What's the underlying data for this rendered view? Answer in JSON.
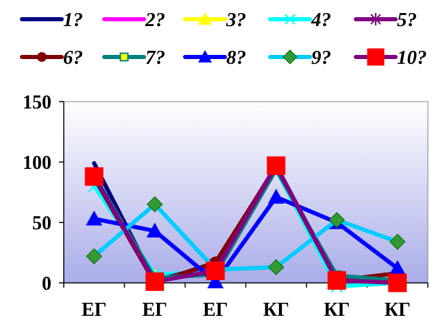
{
  "chart_data": {
    "type": "line",
    "title": "",
    "xlabel": "",
    "ylabel": "",
    "ylim": [
      0,
      150
    ],
    "yticks": [
      0,
      50,
      100,
      150
    ],
    "categories": [
      "ЕГ",
      "ЕГ",
      "ЕГ",
      "КГ",
      "КГ",
      "КГ"
    ],
    "grid": false,
    "legend_position": "top",
    "plot_background": [
      "#ffffff",
      "#a9ace8"
    ],
    "series": [
      {
        "name": "1?",
        "color": "#000080",
        "marker": "none",
        "values": [
          99,
          1,
          12,
          97,
          2,
          0
        ]
      },
      {
        "name": "2?",
        "color": "#ff00ff",
        "marker": "none",
        "values": [
          88,
          3,
          11,
          96,
          3,
          1
        ]
      },
      {
        "name": "3?",
        "color": "#ffff00",
        "marker": "triangle",
        "values": [
          87,
          5,
          8,
          95,
          4,
          2
        ]
      },
      {
        "name": "4?",
        "color": "#00ffff",
        "marker": "x",
        "values": [
          80,
          7,
          9,
          94,
          -3,
          0
        ]
      },
      {
        "name": "5?",
        "color": "#800080",
        "marker": "star",
        "values": [
          89,
          2,
          15,
          97,
          3,
          1
        ]
      },
      {
        "name": "6?",
        "color": "#800000",
        "marker": "circle",
        "values": [
          87,
          0,
          17,
          96,
          2,
          8
        ]
      },
      {
        "name": "7?",
        "color": "#008080",
        "marker": "square",
        "values": [
          89,
          4,
          7,
          94,
          6,
          2
        ]
      },
      {
        "name": "8?",
        "color": "#0000ff",
        "marker": "triangle",
        "values": [
          53,
          43,
          1,
          71,
          50,
          12
        ]
      },
      {
        "name": "9?",
        "color": "#00ccff",
        "marker": "diamond",
        "values": [
          22,
          65,
          11,
          13,
          52,
          34
        ]
      },
      {
        "name": "10?",
        "color": "#800080",
        "marker": "square",
        "values": [
          88,
          1,
          10,
          97,
          2,
          0
        ]
      }
    ]
  }
}
